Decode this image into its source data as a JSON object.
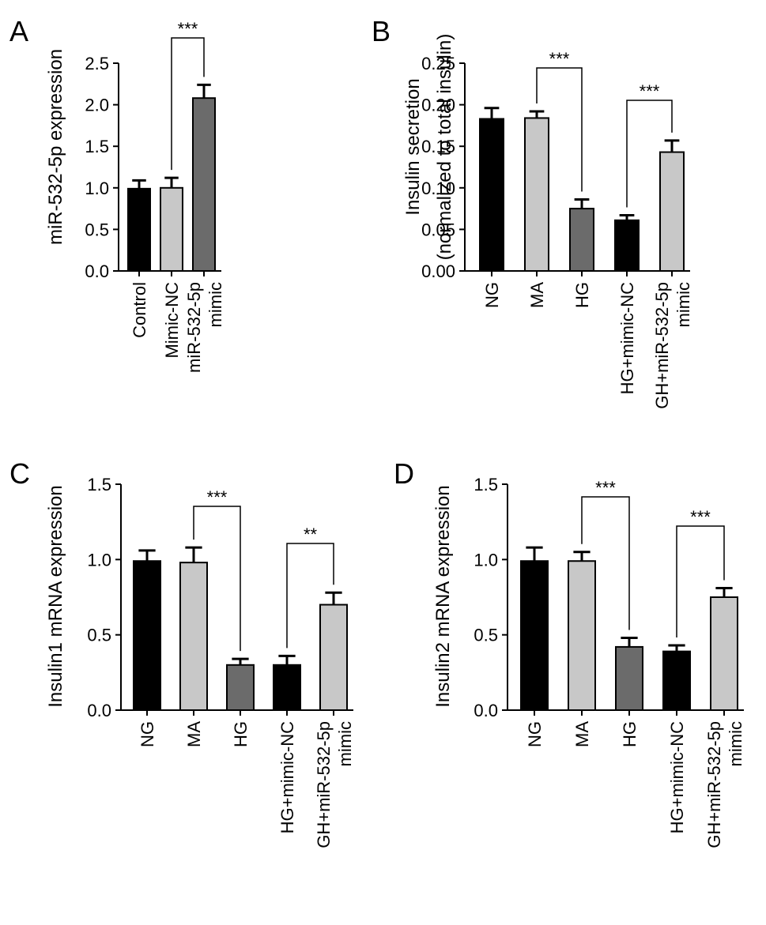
{
  "chart_data": [
    {
      "panel_label": "A",
      "type": "bar",
      "ylabel": "miR-532-5p expression",
      "ylim": [
        0,
        2.5
      ],
      "yticks": [
        "0.0",
        "0.5",
        "1.0",
        "1.5",
        "2.0",
        "2.5"
      ],
      "categories": [
        [
          "Control"
        ],
        [
          "Mimic-NC"
        ],
        [
          "miR-532-5p",
          "mimic"
        ]
      ],
      "values": [
        0.99,
        1.0,
        2.08
      ],
      "errors": [
        0.1,
        0.12,
        0.16
      ],
      "colors": [
        "#000000",
        "#c8c8c8",
        "#6b6b6b"
      ],
      "significance": [
        {
          "from": 1,
          "to": 2,
          "label": "***"
        }
      ]
    },
    {
      "panel_label": "B",
      "type": "bar",
      "ylabel": [
        "Insulin secretion",
        "(normalized to total insulin)"
      ],
      "ylim": [
        0,
        0.25
      ],
      "yticks": [
        "0.00",
        "0.05",
        "0.10",
        "0.15",
        "0.20",
        "0.25"
      ],
      "categories": [
        [
          "NG"
        ],
        [
          "MA"
        ],
        [
          "HG"
        ],
        [
          "HG+mimic-NC"
        ],
        [
          "GH+miR-532-5p",
          "mimic"
        ]
      ],
      "values": [
        0.183,
        0.184,
        0.075,
        0.061,
        0.143
      ],
      "errors": [
        0.013,
        0.008,
        0.011,
        0.006,
        0.014
      ],
      "colors": [
        "#000000",
        "#c8c8c8",
        "#6b6b6b",
        "#000000",
        "#c8c8c8"
      ],
      "significance": [
        {
          "from": 1,
          "to": 2,
          "label": "***"
        },
        {
          "from": 3,
          "to": 4,
          "label": "***"
        }
      ]
    },
    {
      "panel_label": "C",
      "type": "bar",
      "ylabel": "Insulin1 mRNA expression",
      "ylim": [
        0,
        1.5
      ],
      "yticks": [
        "0.0",
        "0.5",
        "1.0",
        "1.5"
      ],
      "categories": [
        [
          "NG"
        ],
        [
          "MA"
        ],
        [
          "HG"
        ],
        [
          "HG+mimic-NC"
        ],
        [
          "GH+miR-532-5p",
          "mimic"
        ]
      ],
      "values": [
        0.99,
        0.98,
        0.3,
        0.3,
        0.7
      ],
      "errors": [
        0.07,
        0.1,
        0.04,
        0.06,
        0.08
      ],
      "colors": [
        "#000000",
        "#c8c8c8",
        "#6b6b6b",
        "#000000",
        "#c8c8c8"
      ],
      "significance": [
        {
          "from": 1,
          "to": 2,
          "label": "***"
        },
        {
          "from": 3,
          "to": 4,
          "label": "**"
        }
      ]
    },
    {
      "panel_label": "D",
      "type": "bar",
      "ylabel": "Insulin2 mRNA expression",
      "ylim": [
        0,
        1.5
      ],
      "yticks": [
        "0.0",
        "0.5",
        "1.0",
        "1.5"
      ],
      "categories": [
        [
          "NG"
        ],
        [
          "MA"
        ],
        [
          "HG"
        ],
        [
          "HG+mimic-NC"
        ],
        [
          "GH+miR-532-5p",
          "mimic"
        ]
      ],
      "values": [
        0.99,
        0.99,
        0.42,
        0.39,
        0.75
      ],
      "errors": [
        0.09,
        0.06,
        0.06,
        0.04,
        0.06
      ],
      "colors": [
        "#000000",
        "#c8c8c8",
        "#6b6b6b",
        "#000000",
        "#c8c8c8"
      ],
      "significance": [
        {
          "from": 1,
          "to": 2,
          "label": "***"
        },
        {
          "from": 3,
          "to": 4,
          "label": "***"
        }
      ]
    }
  ]
}
